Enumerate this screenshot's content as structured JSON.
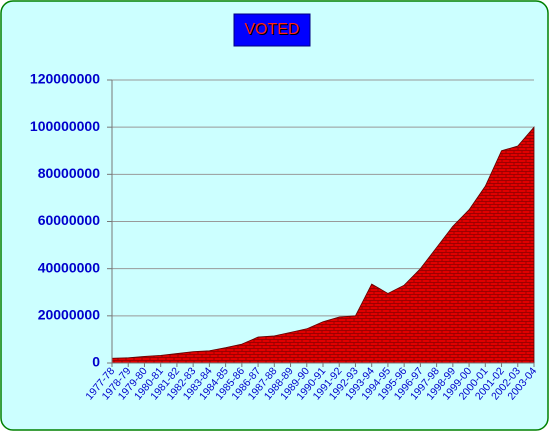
{
  "chart_data": {
    "type": "area",
    "title": "VOTED",
    "categories": [
      "1977-78",
      "1978-79",
      "1979-80",
      "1980-81",
      "1981-82",
      "1982-83",
      "1983-84",
      "1984-85",
      "1985-86",
      "1986-87",
      "1987-88",
      "1988-89",
      "1989-90",
      "1990-91",
      "1991-92",
      "1992-93",
      "1993-94",
      "1994-95",
      "1995-96",
      "1996-97",
      "1997-98",
      "1998-99",
      "1999-00",
      "2000-01",
      "2001-02",
      "2002-03",
      "2003-04"
    ],
    "values": [
      2000000,
      2200000,
      2800000,
      3200000,
      4000000,
      4800000,
      5200000,
      6500000,
      8000000,
      11000000,
      11500000,
      13000000,
      14500000,
      17500000,
      19500000,
      20000000,
      33500000,
      29500000,
      33000000,
      40000000,
      49000000,
      58000000,
      65000000,
      75000000,
      90000000,
      92000000,
      100000000
    ],
    "color": "#e00000",
    "ylim": [
      0,
      120000000
    ],
    "yticks": [
      0,
      20000000,
      40000000,
      60000000,
      80000000,
      100000000,
      120000000
    ],
    "grid": true
  }
}
